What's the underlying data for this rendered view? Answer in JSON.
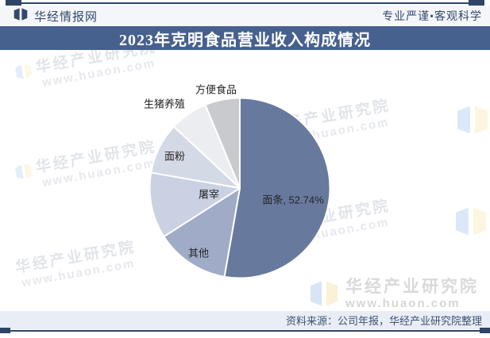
{
  "header": {
    "site_name": "华经情报网",
    "slogan": "专业严谨•客观科学"
  },
  "title_bar": {
    "title": "2023年克明食品营业收入构成情况"
  },
  "chart_data": {
    "type": "pie",
    "title": "2023年克明食品营业收入构成情况",
    "unit": "%",
    "direction": "clockwise",
    "start_angle": "12-o-clock",
    "series": [
      {
        "name": "面条",
        "value": 52.74,
        "label": "面条, 52.74%",
        "color": "#68799E"
      },
      {
        "name": "其他",
        "value": 13.2,
        "label": "其他",
        "color": "#9FABC7"
      },
      {
        "name": "屠宰",
        "value": 11.8,
        "label": "屠宰",
        "color": "#C9D1E2"
      },
      {
        "name": "面粉",
        "value": 9.2,
        "label": "面粉",
        "color": "#D4D9E6"
      },
      {
        "name": "生猪养殖",
        "value": 6.8,
        "label": "生猪养殖",
        "color": "#ECEDF0"
      },
      {
        "name": "方便食品",
        "value": 6.26,
        "label": "方便食品",
        "color": "#C9CACE"
      }
    ]
  },
  "watermark": {
    "brand": "华经产业研究院",
    "url": "www.huaon.com"
  },
  "footer": {
    "source": "资料来源：公司年报，华经产业研究院整理"
  },
  "colors": {
    "accent_dark": "#2E4468",
    "title_bar_bg": "#47618E",
    "header_bg": "#F5F6F9",
    "header_text": "#33496F",
    "footer_bar_bg": "#E9EDF5",
    "footer_text": "#3D5174",
    "pie_label_text": "#262626",
    "slice_colors": [
      "#68799E",
      "#9FABC7",
      "#C9D1E2",
      "#D4D9E6",
      "#ECEDF0",
      "#C9CACE"
    ]
  }
}
